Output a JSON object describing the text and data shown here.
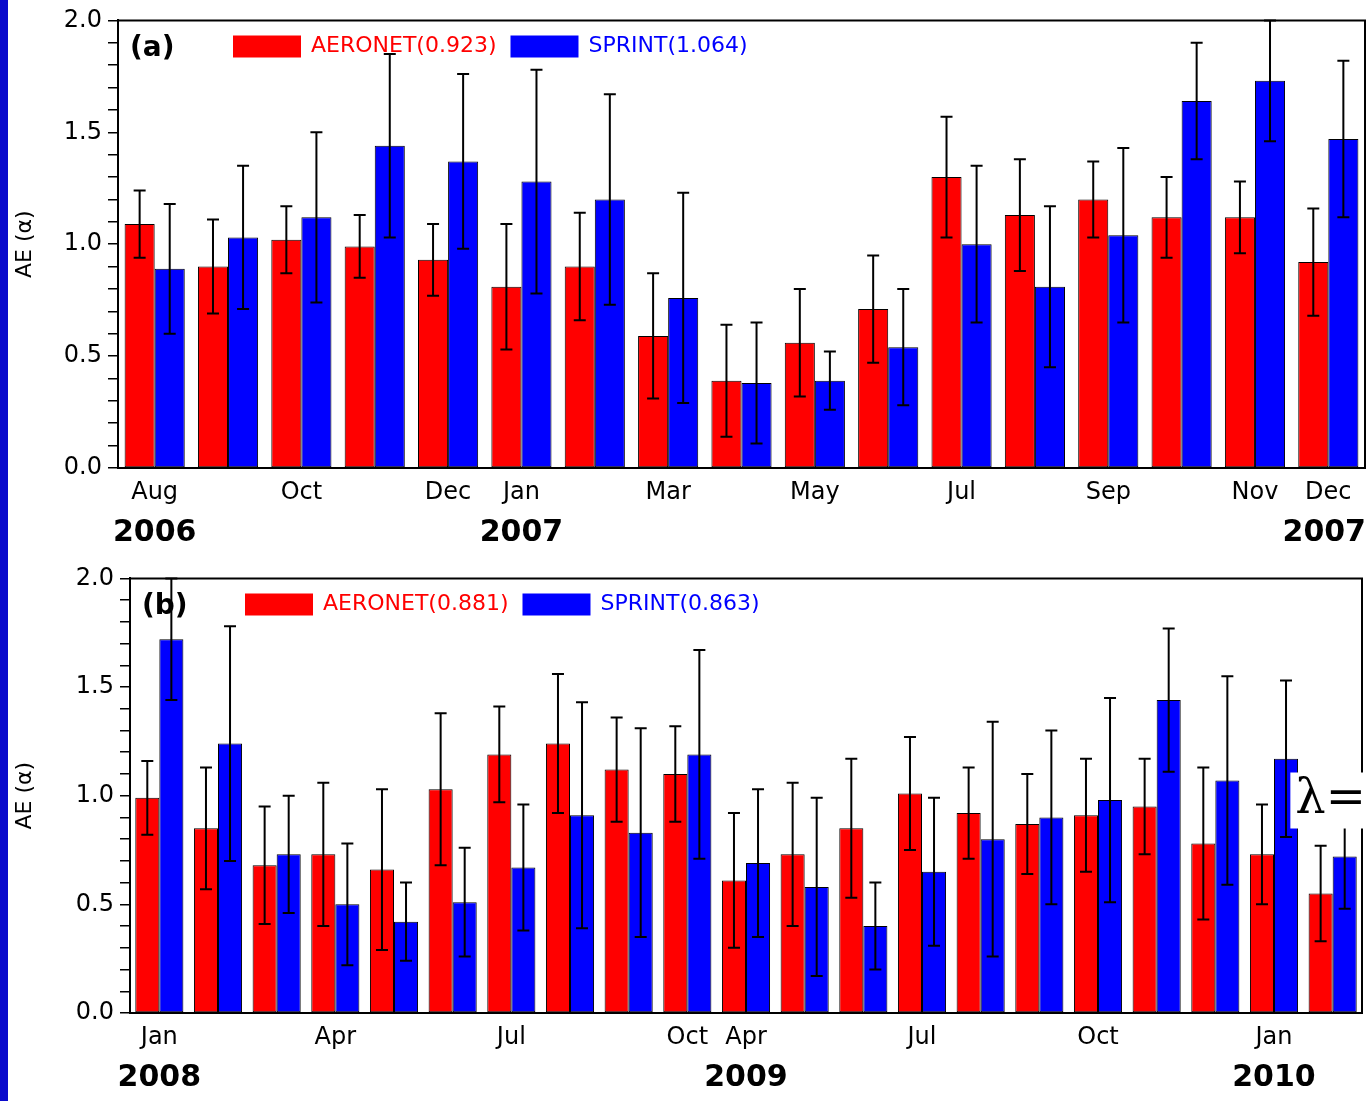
{
  "chart_data": [
    {
      "type": "bar",
      "ylabel": "AE (α)",
      "annotations": [
        "(a)"
      ],
      "legend": "top",
      "categories": [
        "Aug\n2006",
        null,
        "Oct",
        null,
        "Dec",
        "Jan\n2007",
        null,
        "Mar",
        null,
        "May",
        null,
        "Jul",
        null,
        "Sep",
        null,
        "Nov",
        "Dec\n2007"
      ],
      "series": [
        {
          "name": "AERONET(0.923)",
          "color": "#ff0000",
          "values": [
            1.09,
            0.9,
            1.02,
            0.99,
            0.93,
            0.81,
            0.9,
            0.59,
            0.39,
            0.56,
            0.71,
            1.3,
            1.13,
            1.2,
            1.12,
            1.12,
            0.92
          ],
          "errors": [
            0.15,
            0.21,
            0.15,
            0.14,
            0.16,
            0.28,
            0.24,
            0.28,
            0.25,
            0.24,
            0.24,
            0.27,
            0.25,
            0.17,
            0.18,
            0.16,
            0.24
          ]
        },
        {
          "name": "SPRINT(1.064)",
          "color": "#0000ff",
          "values": [
            0.89,
            1.03,
            1.12,
            1.44,
            1.37,
            1.28,
            1.2,
            0.76,
            0.38,
            0.39,
            0.54,
            1.0,
            0.81,
            1.04,
            1.64,
            1.73,
            1.47
          ],
          "errors": [
            0.29,
            0.32,
            0.38,
            0.41,
            0.39,
            0.5,
            0.47,
            0.47,
            0.27,
            0.13,
            0.26,
            0.35,
            0.36,
            0.39,
            0.26,
            0.27,
            0.35
          ]
        }
      ],
      "ylim": [
        0,
        2
      ],
      "yticks": [
        {
          "value": 0,
          "label": "0.0"
        },
        {
          "value": 0.1,
          "label": null
        },
        {
          "value": 0.2,
          "label": null
        },
        {
          "value": 0.3,
          "label": null
        },
        {
          "value": 0.4,
          "label": null
        },
        {
          "value": 0.5,
          "label": "0.5"
        },
        {
          "value": 0.6,
          "label": null
        },
        {
          "value": 0.7,
          "label": null
        },
        {
          "value": 0.8,
          "label": null
        },
        {
          "value": 0.9,
          "label": null
        },
        {
          "value": 1,
          "label": "1.0"
        },
        {
          "value": 1.1,
          "label": null
        },
        {
          "value": 1.2,
          "label": null
        },
        {
          "value": 1.3,
          "label": null
        },
        {
          "value": 1.4,
          "label": null
        },
        {
          "value": 1.5,
          "label": "1.5"
        },
        {
          "value": 1.6,
          "label": null
        },
        {
          "value": 1.7,
          "label": null
        },
        {
          "value": 1.8,
          "label": null
        },
        {
          "value": 1.9,
          "label": null
        },
        {
          "value": 2,
          "label": "2.0"
        }
      ]
    },
    {
      "type": "bar",
      "ylabel": "AE (α)",
      "annotations": [
        "(b)",
        "λ="
      ],
      "legend": "top",
      "categories": [
        "Jan\n2008",
        null,
        null,
        "Apr",
        null,
        null,
        "Jul",
        null,
        null,
        "Oct",
        "Apr\n2009",
        null,
        null,
        "Jul",
        null,
        null,
        "Oct",
        null,
        null,
        "Jan\n2010",
        null
      ],
      "series": [
        {
          "name": "AERONET(0.881)",
          "color": "#ff0000",
          "values": [
            0.99,
            0.85,
            0.68,
            0.73,
            0.66,
            1.03,
            1.19,
            1.24,
            1.12,
            1.1,
            0.61,
            0.73,
            0.85,
            1.01,
            0.92,
            0.87,
            0.91,
            0.95,
            0.78,
            0.73,
            0.55
          ],
          "errors": [
            0.17,
            0.28,
            0.27,
            0.33,
            0.37,
            0.35,
            0.22,
            0.32,
            0.24,
            0.22,
            0.31,
            0.33,
            0.32,
            0.26,
            0.21,
            0.23,
            0.26,
            0.22,
            0.35,
            0.23,
            0.22
          ]
        },
        {
          "name": "SPRINT(0.863)",
          "color": "#0000ff",
          "values": [
            1.72,
            1.24,
            0.73,
            0.5,
            0.42,
            0.51,
            0.67,
            0.91,
            0.83,
            1.19,
            0.69,
            0.58,
            0.4,
            0.65,
            0.8,
            0.9,
            0.98,
            1.44,
            1.07,
            1.17,
            0.72
          ],
          "errors": [
            0.28,
            0.54,
            0.27,
            0.28,
            0.18,
            0.25,
            0.29,
            0.52,
            0.48,
            0.48,
            0.34,
            0.41,
            0.2,
            0.34,
            0.54,
            0.4,
            0.47,
            0.33,
            0.48,
            0.36,
            0.24
          ]
        }
      ],
      "ylim": [
        0,
        2
      ],
      "yticks": [
        {
          "value": 0,
          "label": "0.0"
        },
        {
          "value": 0.1,
          "label": null
        },
        {
          "value": 0.2,
          "label": null
        },
        {
          "value": 0.3,
          "label": null
        },
        {
          "value": 0.4,
          "label": null
        },
        {
          "value": 0.5,
          "label": "0.5"
        },
        {
          "value": 0.6,
          "label": null
        },
        {
          "value": 0.7,
          "label": null
        },
        {
          "value": 0.8,
          "label": null
        },
        {
          "value": 0.9,
          "label": null
        },
        {
          "value": 1,
          "label": "1.0"
        },
        {
          "value": 1.1,
          "label": null
        },
        {
          "value": 1.2,
          "label": null
        },
        {
          "value": 1.3,
          "label": null
        },
        {
          "value": 1.4,
          "label": null
        },
        {
          "value": 1.5,
          "label": "1.5"
        },
        {
          "value": 1.6,
          "label": null
        },
        {
          "value": 1.7,
          "label": null
        },
        {
          "value": 1.8,
          "label": null
        },
        {
          "value": 1.9,
          "label": null
        },
        {
          "value": 2,
          "label": "2.0"
        }
      ]
    }
  ]
}
